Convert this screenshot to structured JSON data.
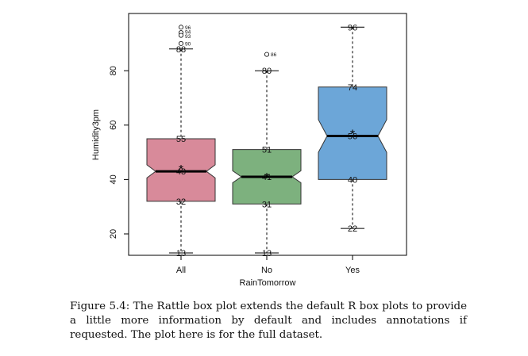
{
  "chart_data": {
    "type": "boxplot",
    "xlabel": "RainTomorrow",
    "ylabel": "Humidity3pm",
    "ylim": [
      10,
      98
    ],
    "yticks": [
      20,
      40,
      60,
      80
    ],
    "notched": true,
    "show_mean": true,
    "categories": [
      "All",
      "No",
      "Yes"
    ],
    "boxes": [
      {
        "name": "All",
        "color": "#d88a9a",
        "min": 13,
        "q1": 32,
        "median": 43,
        "q3": 55,
        "max": 88,
        "mean": 44.5,
        "notch_low": 40.6,
        "notch_high": 45.4,
        "outliers": [
          96,
          94,
          93,
          90
        ],
        "labels": [
          {
            "text": "88",
            "value": 88
          },
          {
            "text": "55",
            "value": 55
          },
          {
            "text": "43",
            "value": 43
          },
          {
            "text": "32",
            "value": 32
          },
          {
            "text": "13",
            "value": 13
          }
        ],
        "outlier_labels": [
          {
            "text": "96",
            "value": 96
          },
          {
            "text": "94",
            "value": 94.4
          },
          {
            "text": "93",
            "value": 92.8
          },
          {
            "text": "90",
            "value": 90
          }
        ]
      },
      {
        "name": "No",
        "color": "#7db17e",
        "min": 13,
        "q1": 31,
        "median": 41,
        "q3": 51,
        "max": 80,
        "mean": 41.5,
        "notch_low": 38.8,
        "notch_high": 43.2,
        "outliers": [
          86
        ],
        "labels": [
          {
            "text": "80",
            "value": 80
          },
          {
            "text": "51",
            "value": 51
          },
          {
            "text": "41",
            "value": 41
          },
          {
            "text": "31",
            "value": 31
          },
          {
            "text": "13",
            "value": 13
          }
        ],
        "outlier_labels": [
          {
            "text": "86",
            "value": 86
          }
        ]
      },
      {
        "name": "Yes",
        "color": "#6ca6d8",
        "min": 22,
        "q1": 40,
        "median": 56,
        "q3": 74,
        "max": 96,
        "mean": 57.5,
        "notch_low": 50,
        "notch_high": 62,
        "outliers": [],
        "labels": [
          {
            "text": "96",
            "value": 96
          },
          {
            "text": "74",
            "value": 74
          },
          {
            "text": "56",
            "value": 56
          },
          {
            "text": "40",
            "value": 40
          },
          {
            "text": "22",
            "value": 22
          }
        ],
        "outlier_labels": []
      }
    ]
  },
  "caption": "Figure 5.4: The Rattle box plot extends the default R box plots to provide a little more information by default and includes annotations if requested. The plot here is for the full dataset."
}
